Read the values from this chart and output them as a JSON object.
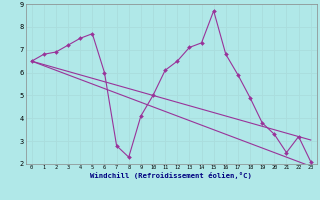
{
  "title": "",
  "xlabel": "Windchill (Refroidissement éolien,°C)",
  "bg_color": "#b0e8e8",
  "line_color": "#993399",
  "grid_color": "#aadddd",
  "x_data": [
    0,
    1,
    2,
    3,
    4,
    5,
    6,
    7,
    8,
    9,
    10,
    11,
    12,
    13,
    14,
    15,
    16,
    17,
    18,
    19,
    20,
    21,
    22,
    23
  ],
  "y_main": [
    6.5,
    6.8,
    6.9,
    7.2,
    7.5,
    7.7,
    6.0,
    2.8,
    2.3,
    4.1,
    5.0,
    6.1,
    6.5,
    7.1,
    7.3,
    8.7,
    6.8,
    5.9,
    4.9,
    3.8,
    3.3,
    2.5,
    3.2,
    2.1
  ],
  "y_trend1": [
    6.5,
    6.35,
    6.2,
    6.05,
    5.9,
    5.75,
    5.6,
    5.45,
    5.3,
    5.15,
    5.0,
    4.85,
    4.7,
    4.55,
    4.4,
    4.25,
    4.1,
    3.95,
    3.8,
    3.65,
    3.5,
    3.35,
    3.2,
    3.05
  ],
  "y_trend2": [
    6.5,
    6.3,
    6.1,
    5.9,
    5.7,
    5.5,
    5.3,
    5.1,
    4.9,
    4.7,
    4.5,
    4.3,
    4.1,
    3.9,
    3.7,
    3.5,
    3.3,
    3.1,
    2.9,
    2.7,
    2.5,
    2.3,
    2.1,
    1.9
  ],
  "ylim": [
    2,
    9
  ],
  "xlim": [
    -0.5,
    23.5
  ],
  "yticks": [
    2,
    3,
    4,
    5,
    6,
    7,
    8,
    9
  ]
}
